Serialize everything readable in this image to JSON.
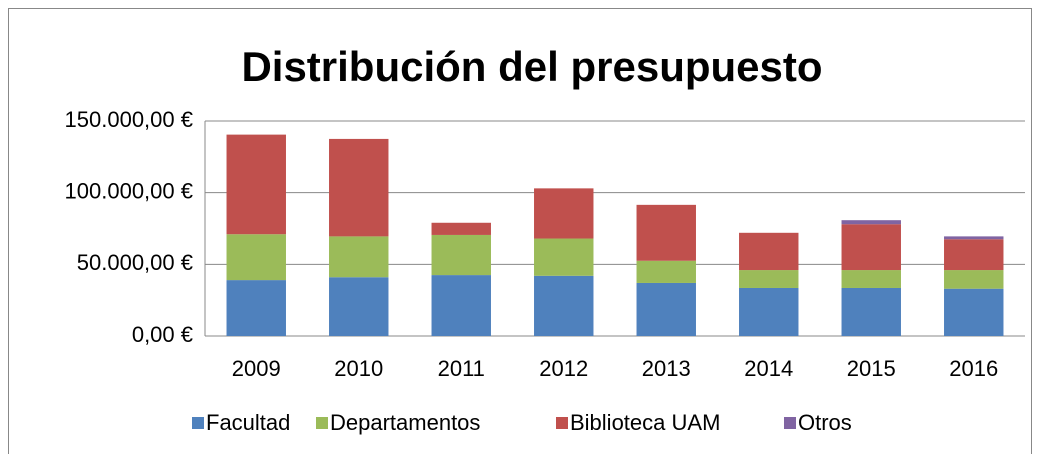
{
  "chart_data": {
    "type": "bar",
    "stacked": true,
    "title": "Distribución del presupuesto",
    "categories": [
      "2009",
      "2010",
      "2011",
      "2012",
      "2013",
      "2014",
      "2015",
      "2016"
    ],
    "series": [
      {
        "name": "Facultad",
        "color": "#4f81bd",
        "values": [
          39000,
          41000,
          42500,
          42000,
          37000,
          33500,
          33500,
          33000
        ]
      },
      {
        "name": "Departamentos",
        "color": "#9bbb59",
        "values": [
          32000,
          28500,
          28000,
          26000,
          15500,
          12500,
          12500,
          13000
        ]
      },
      {
        "name": "Biblioteca UAM",
        "color": "#c0504d",
        "values": [
          69500,
          68000,
          8500,
          35000,
          39000,
          26000,
          32000,
          21500
        ]
      },
      {
        "name": "Otros",
        "color": "#8064a2",
        "values": [
          0,
          0,
          0,
          0,
          0,
          0,
          2800,
          2000
        ]
      }
    ],
    "ylim": [
      0,
      150000
    ],
    "yticks": [
      {
        "value": 0,
        "label": "0,00 €"
      },
      {
        "value": 50000,
        "label": "50.000,00 €"
      },
      {
        "value": 100000,
        "label": "100.000,00 €"
      },
      {
        "value": 150000,
        "label": "150.000,00 €"
      }
    ],
    "grid": true,
    "legend": "bottom"
  }
}
